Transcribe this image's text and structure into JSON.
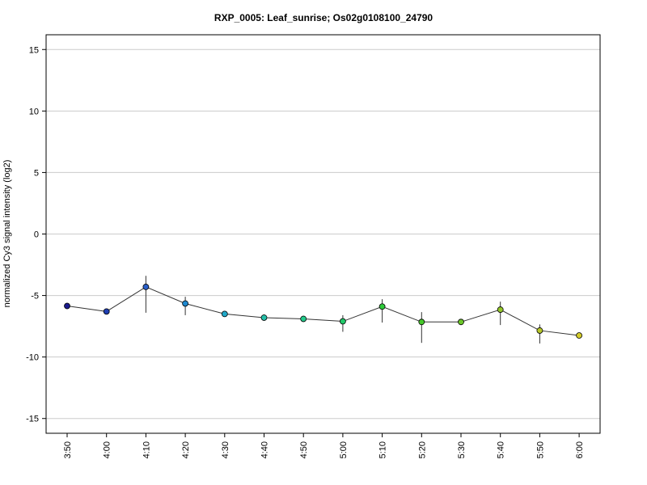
{
  "chart_data": {
    "type": "line",
    "title": "RXP_0005: Leaf_sunrise; Os02g0108100_24790",
    "xlabel": "",
    "ylabel": "normalized Cy3 signal intensity (log2)",
    "ylim": [
      -16.2,
      16.2
    ],
    "yticks": [
      -15,
      -10,
      -5,
      0,
      5,
      10,
      15
    ],
    "grid": true,
    "legend": "none",
    "categories": [
      "3:50",
      "4:00",
      "4:10",
      "4:20",
      "4:30",
      "4:40",
      "4:50",
      "5:00",
      "5:10",
      "5:20",
      "5:30",
      "5:40",
      "5:50",
      "6:00"
    ],
    "series": [
      {
        "values": [
          -5.85,
          -6.3,
          -4.3,
          -5.65,
          -6.5,
          -6.8,
          -6.9,
          -7.1,
          -5.9,
          -7.15,
          -7.15,
          -6.15,
          -7.85,
          -8.25
        ],
        "err_low": [
          -6.1,
          -6.45,
          -6.4,
          -6.6,
          -6.6,
          -7.05,
          -7.15,
          -7.95,
          -7.2,
          -8.85,
          -7.3,
          -7.4,
          -8.9,
          -8.35
        ],
        "err_high": [
          -5.6,
          -6.15,
          -3.4,
          -5.1,
          -6.4,
          -6.55,
          -6.65,
          -6.6,
          -5.3,
          -6.35,
          -7.0,
          -5.5,
          -7.35,
          -8.15
        ],
        "point_colors": [
          "#1a1a8c",
          "#1f3fb3",
          "#2a5fc9",
          "#1e88cf",
          "#21a8c8",
          "#24bfa8",
          "#22c98a",
          "#22c96a",
          "#2ecb3a",
          "#45c82a",
          "#6cc62a",
          "#95c82a",
          "#b8c82a",
          "#d4cc2a"
        ]
      }
    ]
  }
}
